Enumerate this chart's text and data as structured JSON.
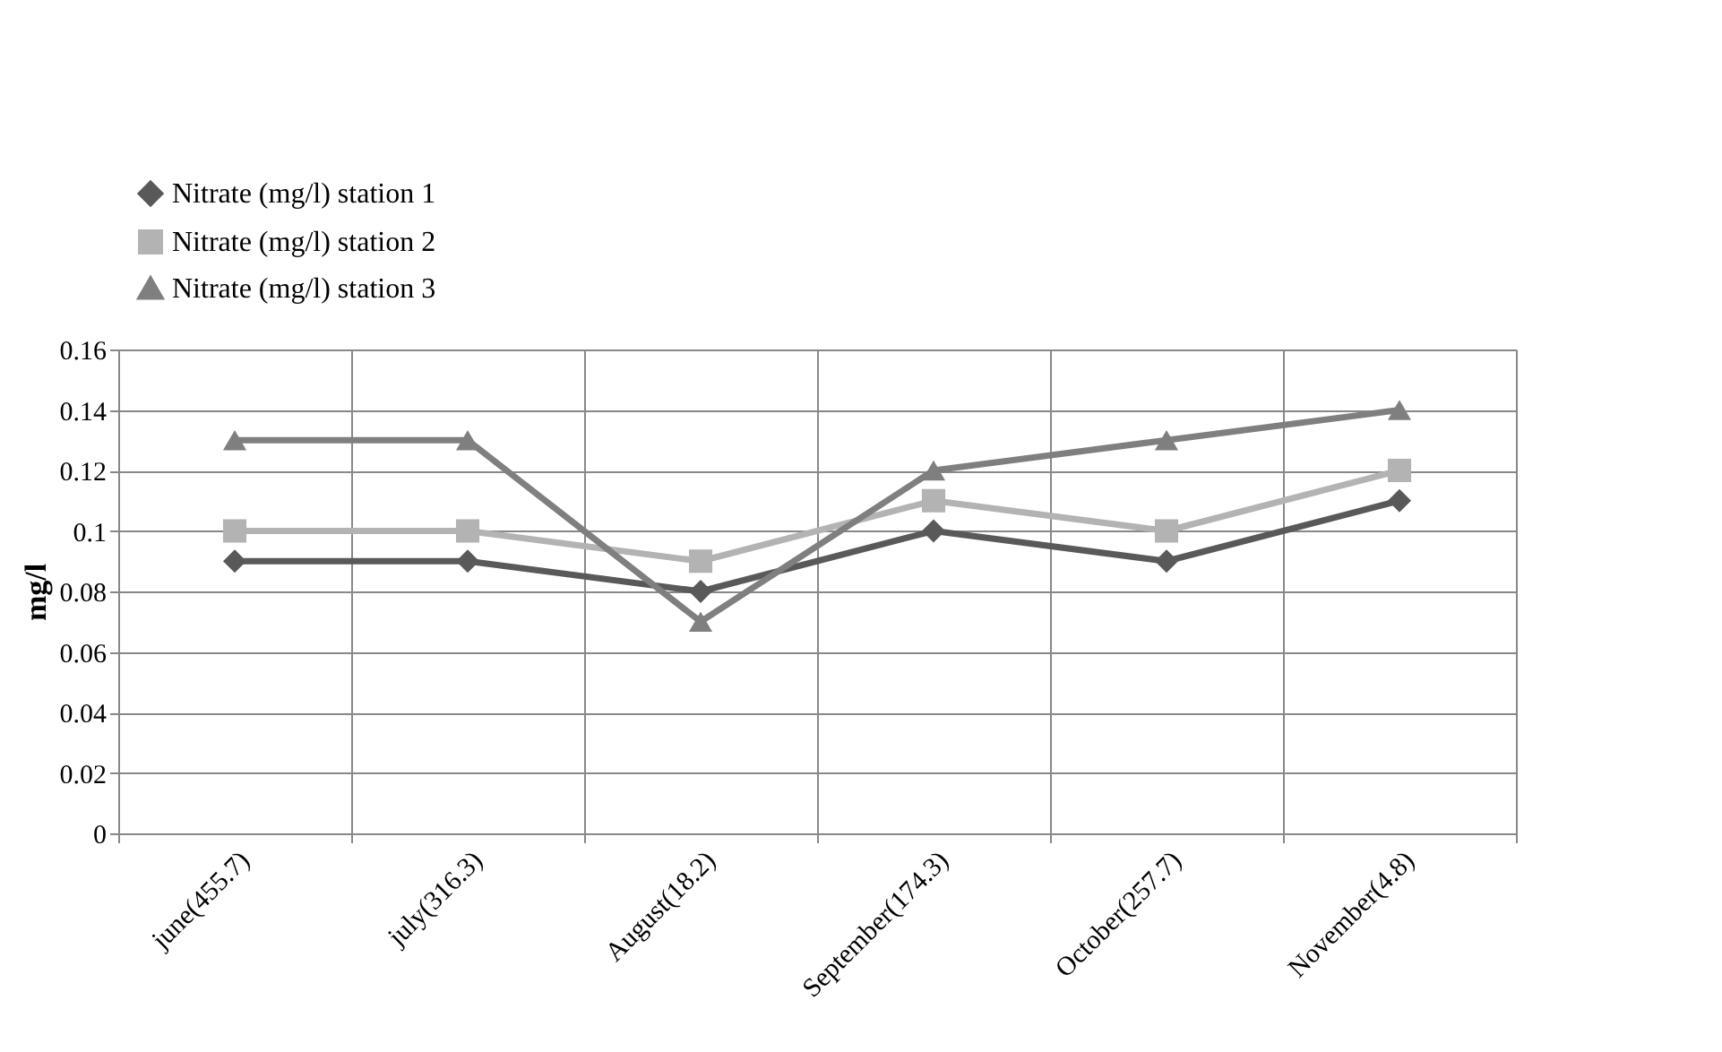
{
  "chart_data": {
    "type": "line",
    "ylabel": "mg/l",
    "categories": [
      "june(455.7)",
      "july(316.3)",
      "August(18.2)",
      "September(174.3)",
      "October(257.7)",
      "November(4.8)"
    ],
    "series": [
      {
        "name": "Nitrate (mg/l) station 1",
        "color": "#595959",
        "marker": "diamond",
        "values": [
          0.09,
          0.09,
          0.08,
          0.1,
          0.09,
          0.11
        ]
      },
      {
        "name": "Nitrate (mg/l) station 2",
        "color": "#b3b3b3",
        "marker": "square",
        "values": [
          0.1,
          0.1,
          0.09,
          0.11,
          0.1,
          0.12
        ]
      },
      {
        "name": "Nitrate (mg/l) station 3",
        "color": "#7f7f7f",
        "marker": "triangle",
        "values": [
          0.13,
          0.13,
          0.07,
          0.12,
          0.13,
          0.14
        ]
      }
    ],
    "ylim": [
      0,
      0.16
    ],
    "yticks": [
      0,
      0.02,
      0.04,
      0.06,
      0.08,
      0.1,
      0.12,
      0.14,
      0.16
    ],
    "grid": true,
    "legend": "top left",
    "line_style": "solid"
  }
}
